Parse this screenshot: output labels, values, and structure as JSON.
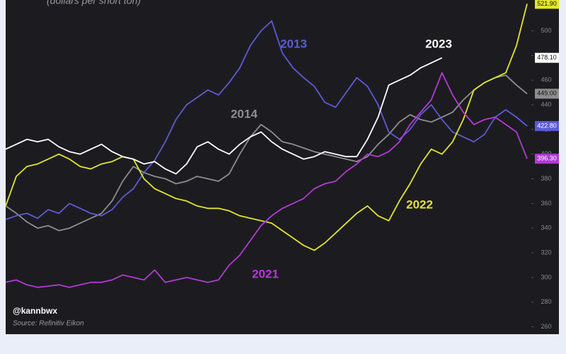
{
  "chart_data": {
    "type": "line",
    "subtitle": "(dollars per short ton)",
    "annotations": [
      "@kannbwx",
      "Source: Refinitiv Eikon"
    ],
    "ylim": [
      254,
      525
    ],
    "yticks": [
      260,
      280,
      300,
      320,
      340,
      360,
      380,
      400,
      420,
      440,
      460,
      480,
      500
    ],
    "series": [
      {
        "name": "2013",
        "color": "#5b5bd8",
        "values": [
          347,
          350,
          352,
          348,
          355,
          352,
          360,
          356,
          352,
          350,
          355,
          365,
          372,
          385,
          395,
          410,
          428,
          440,
          446,
          452,
          448,
          458,
          470,
          488,
          500,
          508,
          482,
          470,
          462,
          455,
          442,
          438,
          450,
          462,
          455,
          440,
          418,
          412,
          420,
          432,
          440,
          428,
          418,
          414,
          410,
          416,
          430,
          436,
          430,
          422.8
        ],
        "value_labels": [
          null,
          null,
          null,
          null,
          null,
          null,
          null,
          null,
          null,
          null,
          null,
          null,
          null,
          null,
          null,
          null,
          null,
          null,
          null,
          null,
          null,
          null,
          null,
          null,
          null,
          null,
          null,
          null,
          null,
          null,
          null,
          null,
          null,
          null,
          null,
          null,
          null,
          null,
          null,
          null,
          null,
          null,
          null,
          null,
          null,
          null,
          null,
          null,
          null,
          "422.80"
        ]
      },
      {
        "name": "2014",
        "color": "#8e8e8e",
        "values": [
          358,
          352,
          345,
          340,
          342,
          338,
          340,
          344,
          348,
          352,
          362,
          378,
          390,
          385,
          382,
          380,
          376,
          378,
          382,
          380,
          378,
          384,
          400,
          414,
          424,
          418,
          410,
          408,
          405,
          402,
          400,
          398,
          396,
          394,
          398,
          408,
          416,
          426,
          432,
          428,
          426,
          430,
          434,
          444,
          452,
          458,
          462,
          464,
          456,
          449
        ],
        "value_labels": [
          null,
          null,
          null,
          null,
          null,
          null,
          null,
          null,
          null,
          null,
          null,
          null,
          null,
          null,
          null,
          null,
          null,
          null,
          null,
          null,
          null,
          null,
          null,
          null,
          null,
          null,
          null,
          null,
          null,
          null,
          null,
          null,
          null,
          null,
          null,
          null,
          null,
          null,
          null,
          null,
          null,
          null,
          null,
          null,
          null,
          null,
          null,
          null,
          null,
          "449.00"
        ]
      },
      {
        "name": "2021",
        "color": "#b33ad4",
        "values": [
          296,
          298,
          294,
          292,
          293,
          294,
          292,
          294,
          296,
          296,
          298,
          302,
          300,
          298,
          306,
          296,
          298,
          300,
          298,
          296,
          298,
          310,
          318,
          330,
          342,
          350,
          356,
          360,
          364,
          372,
          376,
          378,
          386,
          392,
          400,
          398,
          402,
          410,
          424,
          434,
          444,
          466,
          448,
          434,
          424,
          428,
          430,
          424,
          418,
          396.3
        ],
        "value_labels": [
          null,
          null,
          null,
          null,
          null,
          null,
          null,
          null,
          null,
          null,
          null,
          null,
          null,
          null,
          null,
          null,
          null,
          null,
          null,
          null,
          null,
          null,
          null,
          null,
          null,
          null,
          null,
          null,
          null,
          null,
          null,
          null,
          null,
          null,
          null,
          null,
          null,
          null,
          null,
          null,
          null,
          null,
          null,
          null,
          null,
          null,
          null,
          null,
          null,
          "396.30"
        ]
      },
      {
        "name": "2022",
        "color": "#e4e432",
        "values": [
          358,
          382,
          390,
          392,
          396,
          400,
          396,
          390,
          388,
          392,
          394,
          398,
          396,
          380,
          372,
          368,
          364,
          362,
          358,
          356,
          356,
          354,
          350,
          348,
          346,
          344,
          338,
          332,
          326,
          322,
          328,
          336,
          344,
          352,
          358,
          350,
          346,
          362,
          376,
          392,
          404,
          400,
          410,
          428,
          452,
          458,
          462,
          466,
          488,
          521.9
        ],
        "value_labels": [
          null,
          null,
          null,
          null,
          null,
          null,
          null,
          null,
          null,
          null,
          null,
          null,
          null,
          null,
          null,
          null,
          null,
          null,
          null,
          null,
          null,
          null,
          null,
          null,
          null,
          null,
          null,
          null,
          null,
          null,
          null,
          null,
          null,
          null,
          null,
          null,
          null,
          null,
          null,
          null,
          null,
          null,
          null,
          null,
          null,
          null,
          null,
          null,
          null,
          "521.90"
        ]
      },
      {
        "name": "2023",
        "color": "#ffffff",
        "values": [
          404,
          408,
          412,
          410,
          412,
          406,
          402,
          400,
          404,
          408,
          402,
          398,
          396,
          392,
          394,
          388,
          384,
          392,
          406,
          410,
          404,
          400,
          408,
          414,
          418,
          410,
          404,
          400,
          396,
          398,
          402,
          400,
          398,
          398,
          412,
          430,
          456,
          460,
          464,
          470,
          474,
          478.1,
          null,
          null,
          null,
          null,
          null,
          null,
          null,
          null
        ],
        "value_labels": [
          null,
          null,
          null,
          null,
          null,
          null,
          null,
          null,
          null,
          null,
          null,
          null,
          null,
          null,
          null,
          null,
          null,
          null,
          null,
          null,
          null,
          null,
          null,
          null,
          null,
          null,
          null,
          null,
          null,
          null,
          null,
          null,
          null,
          null,
          null,
          null,
          null,
          null,
          null,
          null,
          null,
          "478.10",
          null,
          null,
          null,
          null,
          null,
          null,
          null,
          null
        ]
      }
    ]
  }
}
